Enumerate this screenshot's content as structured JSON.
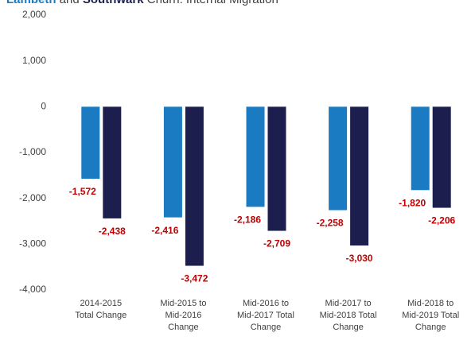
{
  "chart_data": {
    "type": "bar",
    "title_parts": [
      {
        "text": "Lambeth",
        "color": "#1b7bc2",
        "bold": true
      },
      {
        "text": " and ",
        "color": "#404040",
        "bold": false
      },
      {
        "text": "Southwark",
        "color": "#1c1f4e",
        "bold": true
      },
      {
        "text": " Churn: Internal Migration",
        "color": "#404040",
        "bold": false
      }
    ],
    "categories": [
      [
        "2014-2015",
        "Total Change"
      ],
      [
        "Mid-2015 to",
        "Mid-2016",
        "Change"
      ],
      [
        "Mid-2016 to",
        "Mid-2017 Total",
        "Change"
      ],
      [
        "Mid-2017 to",
        "Mid-2018 Total",
        "Change"
      ],
      [
        "Mid-2018 to",
        "Mid-2019 Total",
        "Change"
      ]
    ],
    "series": [
      {
        "name": "Lambeth",
        "color": "#1b7bc2",
        "values": [
          -1572,
          -2416,
          -2186,
          -2258,
          -1820
        ],
        "value_labels": [
          "-1,572",
          "-2,416",
          "-2,186",
          "-2,258",
          "-1,820"
        ]
      },
      {
        "name": "Southwark",
        "color": "#1c1f4e",
        "values": [
          -2438,
          -3472,
          -2709,
          -3030,
          -2206
        ],
        "value_labels": [
          "-2,438",
          "-3,472",
          "-2,709",
          "-3,030",
          "-2,206"
        ]
      }
    ],
    "value_label_color": "#c00000",
    "ylim": [
      -4000,
      2000
    ],
    "yticks": [
      {
        "value": -4000,
        "label": "-4,000"
      },
      {
        "value": -3000,
        "label": "-3,000"
      },
      {
        "value": -2000,
        "label": "-2,000"
      },
      {
        "value": -1000,
        "label": "-1,000"
      },
      0,
      {
        "value": 1000,
        "label": "1,000"
      },
      {
        "value": 2000,
        "label": "2,000"
      }
    ],
    "grid": false
  }
}
